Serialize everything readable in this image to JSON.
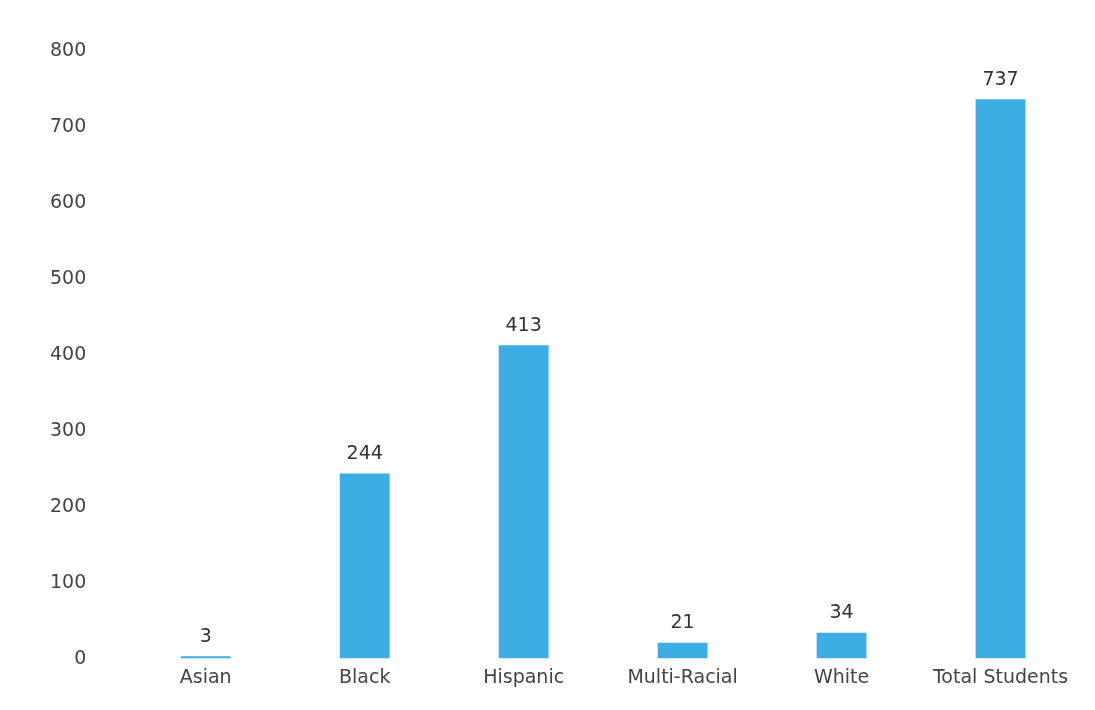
{
  "chart_data": {
    "type": "bar",
    "categories": [
      "Asian",
      "Black",
      "Hispanic",
      "Multi-Racial",
      "White",
      "Total Students"
    ],
    "values": [
      3,
      244,
      413,
      21,
      34,
      737
    ],
    "color": "#3caee4",
    "ylim": [
      0,
      800
    ],
    "yticks": [
      0,
      100,
      200,
      300,
      400,
      500,
      600,
      700,
      800
    ],
    "data_labels": true
  }
}
